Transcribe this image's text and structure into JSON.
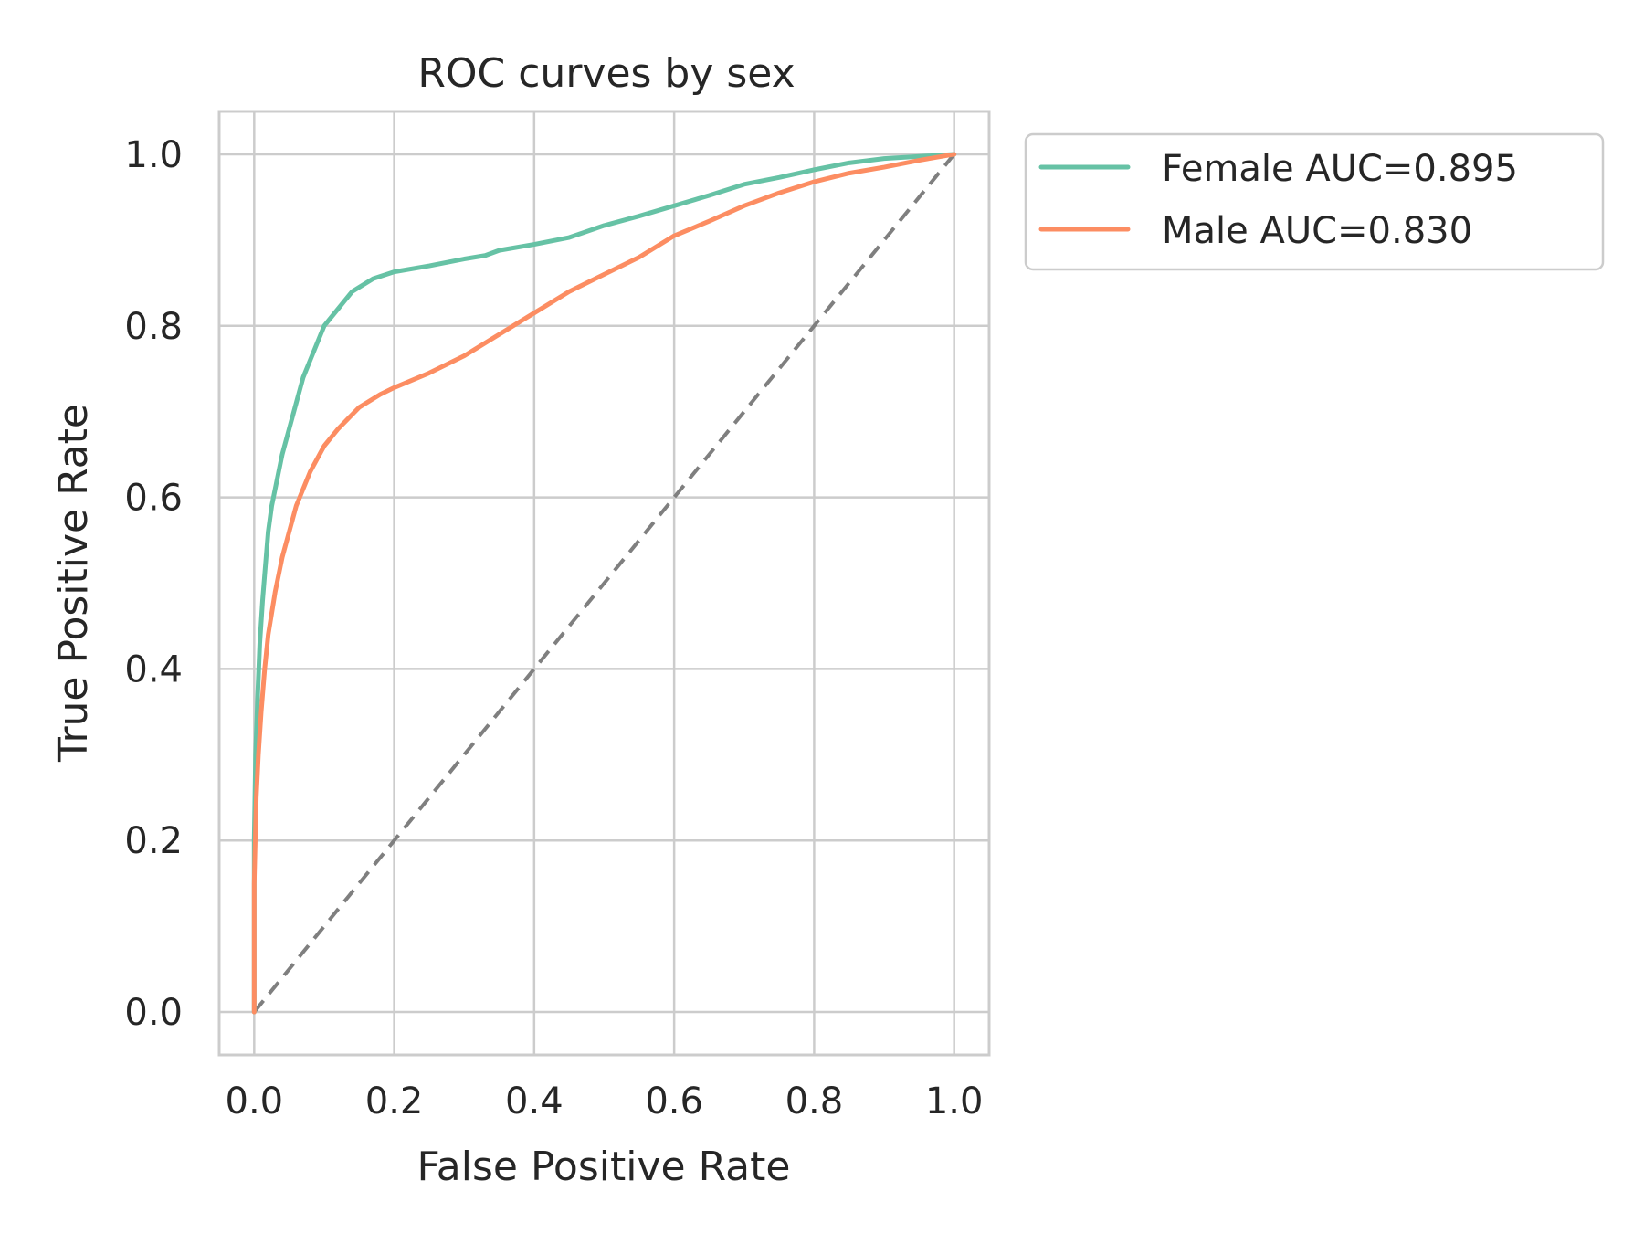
{
  "chart_data": {
    "type": "line",
    "title": "ROC curves by sex",
    "xlabel": "False Positive Rate",
    "ylabel": "True Positive Rate",
    "xlim": [
      -0.05,
      1.05
    ],
    "ylim": [
      -0.05,
      1.05
    ],
    "xticks": [
      "0.0",
      "0.2",
      "0.4",
      "0.6",
      "0.8",
      "1.0"
    ],
    "yticks": [
      "0.0",
      "0.2",
      "0.4",
      "0.6",
      "0.8",
      "1.0"
    ],
    "grid": true,
    "legend_position": "outside upper-right",
    "series": [
      {
        "name": "Female  AUC=0.895",
        "color": "#66c2a5",
        "x": [
          0.0,
          0.0,
          0.002,
          0.005,
          0.008,
          0.012,
          0.016,
          0.02,
          0.025,
          0.03,
          0.035,
          0.04,
          0.05,
          0.06,
          0.07,
          0.08,
          0.09,
          0.1,
          0.11,
          0.12,
          0.13,
          0.14,
          0.15,
          0.17,
          0.2,
          0.25,
          0.3,
          0.33,
          0.35,
          0.4,
          0.45,
          0.5,
          0.55,
          0.6,
          0.65,
          0.7,
          0.75,
          0.8,
          0.85,
          0.9,
          1.0
        ],
        "y": [
          0.0,
          0.2,
          0.3,
          0.37,
          0.43,
          0.48,
          0.52,
          0.56,
          0.59,
          0.61,
          0.63,
          0.65,
          0.68,
          0.71,
          0.74,
          0.76,
          0.78,
          0.8,
          0.81,
          0.82,
          0.83,
          0.84,
          0.845,
          0.855,
          0.863,
          0.87,
          0.878,
          0.882,
          0.888,
          0.895,
          0.903,
          0.917,
          0.928,
          0.94,
          0.952,
          0.965,
          0.973,
          0.982,
          0.99,
          0.995,
          1.0
        ]
      },
      {
        "name": "Male  AUC=0.830",
        "color": "#fc8d62",
        "x": [
          0.0,
          0.0,
          0.003,
          0.006,
          0.01,
          0.015,
          0.02,
          0.03,
          0.04,
          0.05,
          0.06,
          0.07,
          0.08,
          0.1,
          0.12,
          0.15,
          0.18,
          0.2,
          0.25,
          0.3,
          0.35,
          0.4,
          0.45,
          0.5,
          0.55,
          0.6,
          0.65,
          0.7,
          0.75,
          0.8,
          0.85,
          0.9,
          0.95,
          1.0
        ],
        "y": [
          0.0,
          0.15,
          0.25,
          0.3,
          0.35,
          0.4,
          0.44,
          0.49,
          0.53,
          0.56,
          0.59,
          0.61,
          0.63,
          0.66,
          0.68,
          0.705,
          0.72,
          0.728,
          0.745,
          0.765,
          0.79,
          0.815,
          0.84,
          0.86,
          0.88,
          0.905,
          0.922,
          0.94,
          0.955,
          0.968,
          0.978,
          0.985,
          0.993,
          1.0
        ]
      },
      {
        "name": "",
        "color": "#7f7f7f",
        "dashed": true,
        "x": [
          0.0,
          1.0
        ],
        "y": [
          0.0,
          1.0
        ]
      }
    ]
  }
}
